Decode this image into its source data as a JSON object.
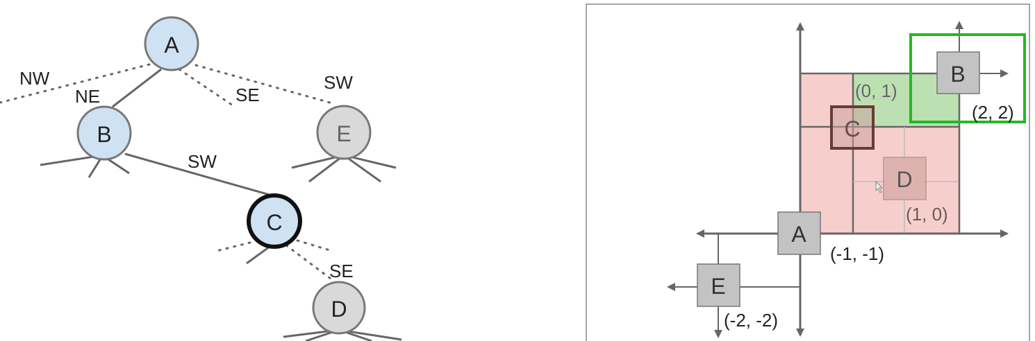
{
  "tree": {
    "nodes": {
      "a": "A",
      "b": "B",
      "c": "C",
      "d": "D",
      "e": "E"
    },
    "edge_labels": {
      "nw": "NW",
      "ne": "NE",
      "se": "SE",
      "sw": "SW",
      "b_sw": "SW",
      "c_se": "SE"
    }
  },
  "plane": {
    "points": {
      "a": "A",
      "b": "B",
      "c": "C",
      "d": "D",
      "e": "E"
    },
    "coords": {
      "a": "(-1, -1)",
      "b": "(2, 2)",
      "c": "(0, 1)",
      "d": "(1, 0)",
      "e": "(-2, -2)"
    }
  },
  "colors": {
    "internal_node": "#cfe2f3",
    "leaf_node": "#d9d9d9",
    "query_box": "#22bb22",
    "region_pink": "#f4c7c3",
    "region_green": "#b7e1b0"
  }
}
